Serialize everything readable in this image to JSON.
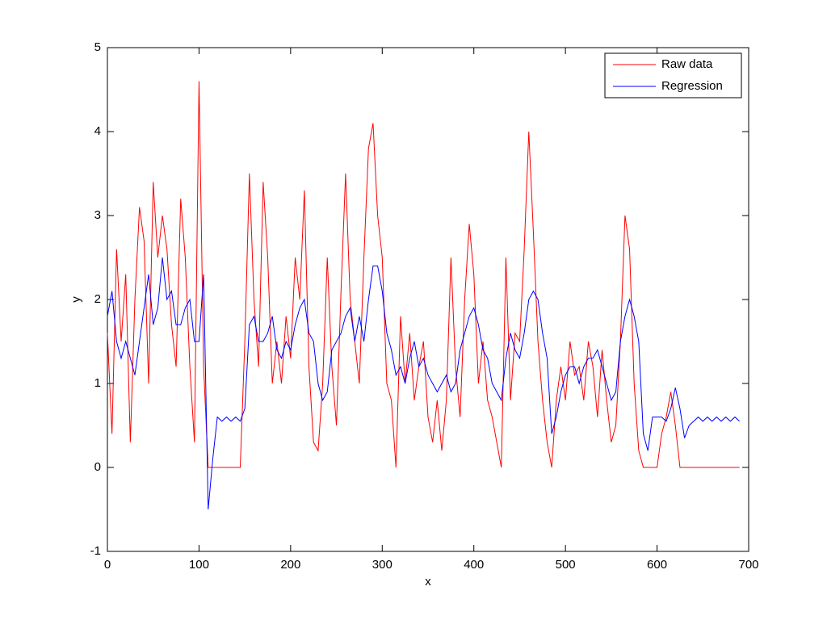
{
  "chart_data": {
    "type": "line",
    "x_label": "x",
    "y_label": "y",
    "x": [
      0,
      5,
      10,
      15,
      20,
      25,
      30,
      35,
      40,
      45,
      50,
      55,
      60,
      65,
      70,
      75,
      80,
      85,
      90,
      95,
      100,
      105,
      110,
      115,
      120,
      125,
      130,
      135,
      140,
      145,
      150,
      155,
      160,
      165,
      170,
      175,
      180,
      185,
      190,
      195,
      200,
      205,
      210,
      215,
      220,
      225,
      230,
      235,
      240,
      245,
      250,
      255,
      260,
      265,
      270,
      275,
      280,
      285,
      290,
      295,
      300,
      305,
      310,
      315,
      320,
      325,
      330,
      335,
      340,
      345,
      350,
      355,
      360,
      365,
      370,
      375,
      380,
      385,
      390,
      395,
      400,
      405,
      410,
      415,
      420,
      425,
      430,
      435,
      440,
      445,
      450,
      455,
      460,
      465,
      470,
      475,
      480,
      485,
      490,
      495,
      500,
      505,
      510,
      515,
      520,
      525,
      530,
      535,
      540,
      545,
      550,
      555,
      560,
      565,
      570,
      575,
      580,
      585,
      590,
      595,
      600,
      605,
      610,
      615,
      620,
      625,
      630,
      635,
      640,
      645,
      650,
      655,
      660,
      665,
      670,
      675,
      680,
      685,
      690
    ],
    "series": [
      {
        "name": "Raw data",
        "color": "#ff0000",
        "values": [
          1.6,
          0.4,
          2.6,
          1.5,
          2.3,
          0.3,
          2.0,
          3.1,
          2.7,
          1.0,
          3.4,
          2.5,
          3.0,
          2.6,
          1.7,
          1.2,
          3.2,
          2.5,
          1.2,
          0.3,
          4.6,
          1.2,
          0,
          0,
          0,
          0,
          0,
          0,
          0,
          0,
          1.5,
          3.5,
          2.0,
          1.2,
          3.4,
          2.5,
          1.0,
          1.5,
          1.0,
          1.8,
          1.3,
          2.5,
          2.0,
          3.3,
          1.2,
          0.3,
          0.2,
          1.0,
          2.5,
          1.2,
          0.5,
          2.1,
          3.5,
          2.0,
          1.5,
          1.0,
          2.5,
          3.8,
          4.1,
          3.0,
          2.5,
          1.0,
          0.8,
          0,
          1.8,
          1.0,
          1.6,
          0.8,
          1.2,
          1.5,
          0.6,
          0.3,
          0.8,
          0.2,
          0.8,
          2.5,
          1.2,
          0.6,
          2.0,
          2.9,
          2.3,
          1.0,
          1.5,
          0.8,
          0.6,
          0.3,
          0,
          2.5,
          0.8,
          1.6,
          1.5,
          2.6,
          4.0,
          2.8,
          1.5,
          0.8,
          0.3,
          0,
          0.8,
          1.2,
          0.8,
          1.5,
          1.1,
          1.2,
          0.8,
          1.5,
          1.2,
          0.6,
          1.4,
          0.8,
          0.3,
          0.5,
          1.5,
          3.0,
          2.6,
          1.0,
          0.2,
          0,
          0,
          0,
          0,
          0.4,
          0.6,
          0.9,
          0.5,
          0,
          0,
          0,
          0,
          0,
          0,
          0,
          0,
          0,
          0,
          0,
          0,
          0,
          0
        ]
      },
      {
        "name": "Regression",
        "color": "#0000ff",
        "values": [
          1.8,
          2.1,
          1.5,
          1.3,
          1.5,
          1.3,
          1.1,
          1.5,
          1.9,
          2.3,
          1.7,
          1.9,
          2.5,
          2.0,
          2.1,
          1.7,
          1.7,
          1.9,
          2.0,
          1.5,
          1.5,
          2.3,
          -0.5,
          0.1,
          0.6,
          0.55,
          0.6,
          0.55,
          0.6,
          0.55,
          0.7,
          1.7,
          1.8,
          1.5,
          1.5,
          1.6,
          1.8,
          1.4,
          1.3,
          1.5,
          1.4,
          1.7,
          1.9,
          2.0,
          1.6,
          1.5,
          1.0,
          0.8,
          0.9,
          1.4,
          1.5,
          1.6,
          1.8,
          1.9,
          1.5,
          1.8,
          1.5,
          2.0,
          2.4,
          2.4,
          2.1,
          1.6,
          1.4,
          1.1,
          1.2,
          1.0,
          1.3,
          1.5,
          1.2,
          1.3,
          1.1,
          1.0,
          0.9,
          1.0,
          1.1,
          0.9,
          1.0,
          1.4,
          1.6,
          1.8,
          1.9,
          1.7,
          1.4,
          1.3,
          1.0,
          0.9,
          0.8,
          1.3,
          1.6,
          1.4,
          1.3,
          1.6,
          2.0,
          2.1,
          2.0,
          1.6,
          1.3,
          0.4,
          0.6,
          0.9,
          1.1,
          1.2,
          1.2,
          1.0,
          1.2,
          1.3,
          1.3,
          1.4,
          1.2,
          1.0,
          0.8,
          0.9,
          1.5,
          1.8,
          2.0,
          1.8,
          1.5,
          0.4,
          0.2,
          0.6,
          0.6,
          0.6,
          0.55,
          0.7,
          0.95,
          0.7,
          0.35,
          0.5,
          0.55,
          0.6,
          0.55,
          0.6,
          0.55,
          0.6,
          0.55,
          0.6,
          0.55,
          0.6,
          0.55
        ]
      }
    ],
    "xlim": [
      0,
      700
    ],
    "xticks": [
      0,
      100,
      200,
      300,
      400,
      500,
      600,
      700
    ],
    "ylim": [
      -1,
      5
    ],
    "yticks": [
      -1,
      0,
      1,
      2,
      3,
      4,
      5
    ],
    "legend": "upper-right"
  }
}
